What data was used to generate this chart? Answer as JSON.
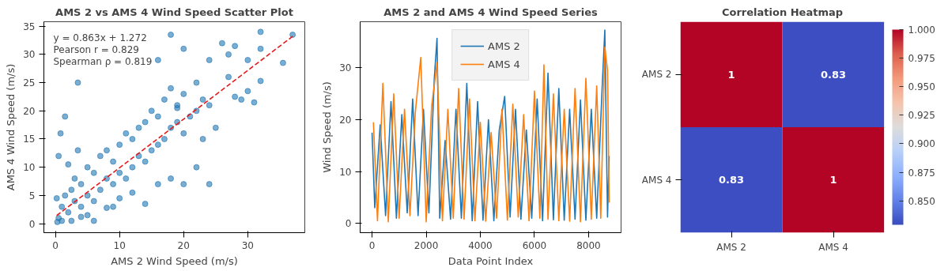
{
  "chart_data": [
    {
      "type": "scatter",
      "title": "AMS 2 vs AMS 4 Wind Speed Scatter Plot",
      "xlabel": "AMS 2 Wind Speed (m/s)",
      "ylabel": "AMS 4 Wind Speed (m/s)",
      "annotations": [
        "y = 0.863x + 1.272",
        "Pearson r = 0.829",
        "Spearman ρ = 0.819"
      ],
      "xlim": [
        -1.8,
        38.9
      ],
      "ylim": [
        -1.6,
        35.8
      ],
      "xticks": [
        0,
        10,
        20,
        30
      ],
      "yticks": [
        0,
        5,
        10,
        15,
        20,
        25,
        30,
        35
      ],
      "grid": false,
      "legend": false,
      "marker": "circle",
      "series": [
        {
          "type": "scatter",
          "color": "#1f77b4",
          "x": [
            0.5,
            1,
            1.5,
            2,
            2.5,
            3,
            3,
            4,
            4,
            5,
            5,
            6,
            6,
            7,
            7,
            8,
            8,
            9,
            9,
            10,
            10,
            11,
            11,
            12,
            12,
            13,
            13,
            14,
            14,
            15,
            15,
            16,
            16,
            17,
            17,
            18,
            18,
            19,
            19,
            20,
            20,
            21,
            22,
            22,
            23,
            24,
            3.5,
            1.5,
            0.8,
            0.5,
            3.5,
            2,
            6,
            9,
            10,
            14,
            16,
            18,
            20,
            22,
            24,
            23,
            25,
            26,
            27,
            28,
            30,
            32,
            32,
            35.5,
            37,
            32,
            31,
            28,
            29,
            30,
            27,
            24,
            20,
            18,
            16,
            19,
            0.2,
            0.3,
            1,
            5,
            8,
            12,
            2.5,
            4
          ],
          "values": [
            1,
            3,
            5,
            2,
            6,
            4,
            8,
            3,
            7,
            5,
            10,
            4,
            9,
            6,
            12,
            8,
            13,
            7,
            11,
            9,
            14,
            8,
            16,
            10,
            15,
            12,
            17,
            11,
            18,
            13,
            20,
            14,
            19,
            15,
            22,
            17,
            24,
            18,
            21,
            16,
            23,
            19,
            20,
            25,
            22,
            21,
            25,
            19,
            16,
            12,
            13,
            10.5,
            0.5,
            3,
            4.5,
            3.5,
            7,
            8,
            7,
            10,
            7,
            15,
            17,
            32,
            30,
            31.5,
            29,
            34,
            31,
            28.5,
            33.5,
            25.3,
            21.5,
            22.5,
            22,
            23.5,
            26,
            29,
            31,
            33.5,
            29,
            20.5,
            4.5,
            0.3,
            0.5,
            1.5,
            2.8,
            5.5,
            0.5,
            1.2
          ]
        },
        {
          "type": "line",
          "color": "#e41a1c",
          "line_style": "dashed",
          "marker": "none",
          "x": [
            0.2,
            37.2
          ],
          "values": [
            1.445,
            33.376
          ]
        }
      ]
    },
    {
      "type": "line",
      "title": "AMS 2 and AMS 4 Wind Speed Series",
      "xlabel": "Data Point Index",
      "ylabel": "Wind Speed (m/s)",
      "xlim": [
        -440,
        9200
      ],
      "ylim": [
        -1.8,
        38.9
      ],
      "xticks": [
        0,
        2000,
        4000,
        6000,
        8000
      ],
      "yticks": [
        0,
        10,
        20,
        30
      ],
      "grid": false,
      "legend": "top",
      "marker": "none",
      "line_style": "solid",
      "series": [
        {
          "name": "AMS 2",
          "color": "#1f77b4",
          "x": [
            0,
            100,
            300,
            500,
            700,
            900,
            1100,
            1300,
            1500,
            1700,
            1900,
            2100,
            2300,
            2400,
            2500,
            2700,
            2900,
            3100,
            3300,
            3500,
            3700,
            3900,
            4100,
            4300,
            4500,
            4700,
            4900,
            5100,
            5300,
            5500,
            5700,
            5900,
            6100,
            6300,
            6500,
            6700,
            6900,
            7100,
            7300,
            7500,
            7700,
            7900,
            8100,
            8300,
            8500,
            8600,
            8700,
            8760
          ],
          "values": [
            17.5,
            3,
            19,
            1.5,
            23.5,
            1,
            21,
            2,
            24,
            1.5,
            22,
            2,
            28,
            35.7,
            1,
            16,
            0.8,
            22,
            1,
            27,
            0.5,
            23.5,
            0.6,
            20,
            0.5,
            18,
            24.5,
            1.2,
            22,
            0.8,
            18,
            1,
            24,
            0.5,
            29,
            0.7,
            26,
            0.6,
            22,
            0.8,
            23.8,
            0.6,
            22,
            1,
            26,
            37.3,
            1.2,
            13
          ]
        },
        {
          "name": "AMS 4",
          "color": "#ff7f0e",
          "x": [
            50,
            200,
            400,
            600,
            800,
            1000,
            1200,
            1400,
            1600,
            1800,
            2000,
            2200,
            2400,
            2600,
            2800,
            3000,
            3200,
            3400,
            3600,
            3800,
            4000,
            4200,
            4400,
            4600,
            4800,
            5000,
            5200,
            5400,
            5600,
            5800,
            6000,
            6200,
            6350,
            6500,
            6700,
            6900,
            7100,
            7300,
            7500,
            7700,
            7900,
            8100,
            8300,
            8450,
            8600,
            8700,
            8760
          ],
          "values": [
            19.5,
            0.5,
            27,
            0.3,
            25,
            1,
            22,
            1.5,
            21.5,
            32,
            0.3,
            22.5,
            31,
            0.5,
            22,
            1,
            26,
            0.8,
            24,
            0.5,
            19.5,
            0.4,
            17.5,
            1,
            22,
            0.6,
            23,
            1.2,
            21,
            0.5,
            25.5,
            1,
            30.6,
            0.8,
            25,
            0.5,
            22,
            0.4,
            26,
            0.3,
            28,
            0.8,
            26.5,
            1,
            34,
            29.5,
            4
          ]
        }
      ]
    },
    {
      "type": "heatmap",
      "title": "Correlation Heatmap",
      "categories": [
        "AMS 2",
        "AMS 4"
      ],
      "y_categories": [
        "AMS 2",
        "AMS 4"
      ],
      "cells": [
        [
          1,
          0.83
        ],
        [
          0.83,
          1
        ]
      ],
      "cell_labels": [
        [
          "1",
          "0.83"
        ],
        [
          "0.83",
          "1"
        ]
      ],
      "clim": [
        0.829,
        1.0
      ],
      "cticks": [
        {
          "value": 0.85,
          "label": "0.850"
        },
        {
          "value": 0.875,
          "label": "0.875"
        },
        {
          "value": 0.9,
          "label": "0.900"
        },
        {
          "value": 0.925,
          "label": "0.925"
        },
        {
          "value": 0.95,
          "label": "0.950"
        },
        {
          "value": 0.975,
          "label": "0.975"
        },
        {
          "value": 1.0,
          "label": "1.000"
        }
      ]
    }
  ]
}
